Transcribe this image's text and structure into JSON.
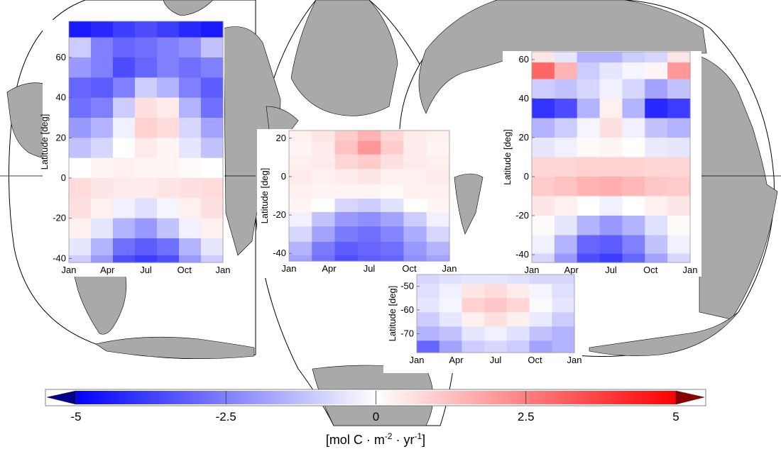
{
  "chart_data": [
    {
      "type": "heatmap",
      "name": "Atlantic",
      "x": [
        "Jan",
        "Apr",
        "Jul",
        "Oct",
        "Jan"
      ],
      "ylabel": "Latitude [deg]",
      "ylim": [
        -42,
        78
      ],
      "yticks": [
        60,
        40,
        20,
        0,
        -20,
        -40
      ],
      "ylabel_ticks": [
        "60",
        "40",
        "20",
        "0",
        "-20",
        "-40"
      ],
      "rows_lat": [
        75,
        65,
        55,
        45,
        35,
        25,
        15,
        5,
        -5,
        -15,
        -25,
        -35,
        -42
      ],
      "values": [
        [
          -4.5,
          -4.2,
          -3.8,
          -3.5,
          -3.8,
          -4.2,
          -4.5
        ],
        [
          -1.0,
          -2.5,
          -3.0,
          -2.8,
          -2.5,
          -2.2,
          -1.2
        ],
        [
          -2.0,
          -2.5,
          -3.5,
          -3.0,
          -2.5,
          -2.8,
          -2.5
        ],
        [
          -3.0,
          -3.2,
          -2.5,
          -1.0,
          -1.5,
          -2.5,
          -3.2
        ],
        [
          -2.8,
          -2.5,
          -1.0,
          0.6,
          0.4,
          -1.5,
          -2.8
        ],
        [
          -2.0,
          -1.5,
          -0.3,
          0.9,
          0.7,
          -0.8,
          -1.8
        ],
        [
          -1.2,
          -0.8,
          0.0,
          0.4,
          0.2,
          -0.5,
          -1.2
        ],
        [
          0.0,
          0.2,
          0.3,
          0.2,
          0.2,
          0.1,
          0.0
        ],
        [
          0.7,
          0.5,
          0.4,
          0.4,
          0.5,
          0.6,
          0.7
        ],
        [
          0.6,
          0.3,
          -0.3,
          -0.6,
          -0.2,
          0.3,
          0.6
        ],
        [
          0.3,
          -0.5,
          -1.5,
          -2.0,
          -1.2,
          -0.3,
          0.3
        ],
        [
          -0.5,
          -1.5,
          -2.8,
          -3.2,
          -2.8,
          -1.5,
          -0.5
        ],
        [
          -1.0,
          -2.0,
          -3.5,
          -3.8,
          -3.5,
          -2.0,
          -1.0
        ]
      ]
    },
    {
      "type": "heatmap",
      "name": "Indian",
      "x": [
        "Jan",
        "Apr",
        "Jul",
        "Oct",
        "Jan"
      ],
      "ylabel": "Latitude [deg]",
      "ylim": [
        -44,
        24
      ],
      "yticks": [
        20,
        0,
        -20,
        -40
      ],
      "ylabel_ticks": [
        "20",
        "0",
        "-20",
        "-40"
      ],
      "rows_lat": [
        22,
        15,
        8,
        0,
        -8,
        -15,
        -22,
        -30,
        -38,
        -44
      ],
      "values": [
        [
          0.3,
          0.5,
          1.0,
          1.5,
          0.8,
          0.4,
          0.3
        ],
        [
          0.2,
          0.4,
          1.2,
          2.0,
          1.0,
          0.4,
          0.2
        ],
        [
          0.3,
          0.4,
          0.8,
          1.0,
          0.6,
          0.4,
          0.3
        ],
        [
          0.4,
          0.3,
          0.4,
          0.5,
          0.3,
          0.3,
          0.4
        ],
        [
          0.3,
          0.2,
          0.2,
          0.2,
          0.1,
          0.3,
          0.3
        ],
        [
          0.2,
          0.0,
          -0.8,
          -1.0,
          -0.6,
          0.0,
          0.2
        ],
        [
          -0.3,
          -1.2,
          -2.0,
          -2.2,
          -1.8,
          -1.0,
          -0.3
        ],
        [
          -0.8,
          -1.8,
          -2.6,
          -2.8,
          -2.4,
          -1.6,
          -0.8
        ],
        [
          -1.5,
          -2.6,
          -3.2,
          -3.0,
          -2.8,
          -2.0,
          -1.5
        ],
        [
          -1.8,
          -2.8,
          -3.5,
          -3.2,
          -3.0,
          -2.2,
          -1.8
        ]
      ]
    },
    {
      "type": "heatmap",
      "name": "Pacific",
      "x": [
        "Jan",
        "Apr",
        "Jul",
        "Oct",
        "Jan"
      ],
      "ylabel": "Latitude [deg]",
      "ylim": [
        -44,
        64
      ],
      "yticks": [
        60,
        40,
        20,
        0,
        -20,
        -40
      ],
      "ylabel_ticks": [
        "60",
        "40",
        "20",
        "0",
        "-20",
        "-40"
      ],
      "rows_lat": [
        62,
        55,
        45,
        35,
        25,
        15,
        5,
        -5,
        -15,
        -25,
        -35,
        -44
      ],
      "values": [
        [
          0.5,
          -0.5,
          -1.5,
          -1.5,
          -1.0,
          -0.8,
          0.5
        ],
        [
          3.0,
          1.5,
          -1.0,
          -0.5,
          -0.2,
          0.2,
          2.0
        ],
        [
          -1.0,
          -1.2,
          -0.8,
          -0.3,
          -0.8,
          -1.8,
          -1.2
        ],
        [
          -4.0,
          -3.5,
          -1.5,
          0.3,
          -1.5,
          -4.2,
          -3.8
        ],
        [
          -1.5,
          -1.0,
          -0.2,
          0.6,
          -0.3,
          -1.2,
          -1.5
        ],
        [
          -0.5,
          -0.3,
          0.1,
          0.2,
          0.0,
          -0.4,
          -0.5
        ],
        [
          0.8,
          0.8,
          0.9,
          0.9,
          0.9,
          0.8,
          0.8
        ],
        [
          1.0,
          1.2,
          1.5,
          1.6,
          1.4,
          1.1,
          1.0
        ],
        [
          0.5,
          0.3,
          0.0,
          -0.3,
          0.0,
          0.3,
          0.5
        ],
        [
          0.1,
          -0.5,
          -1.5,
          -2.0,
          -1.5,
          -0.6,
          0.1
        ],
        [
          -0.3,
          -1.5,
          -3.0,
          -3.2,
          -2.5,
          -1.2,
          -0.3
        ],
        [
          -0.8,
          -2.0,
          -3.5,
          -3.8,
          -3.0,
          -1.8,
          -0.8
        ]
      ]
    },
    {
      "type": "heatmap",
      "name": "Southern",
      "x": [
        "Jan",
        "Apr",
        "Jul",
        "Oct",
        "Jan"
      ],
      "ylabel": "Latitude [deg]",
      "ylim": [
        -78,
        -45
      ],
      "yticks": [
        -50,
        -60,
        -70
      ],
      "ylabel_ticks": [
        "-50",
        "-60",
        "-70"
      ],
      "rows_lat": [
        -46,
        -52,
        -58,
        -64,
        -70,
        -76
      ],
      "values": [
        [
          -0.8,
          -0.6,
          -0.5,
          -0.5,
          -0.6,
          -0.8,
          -0.8
        ],
        [
          -0.6,
          -0.3,
          0.5,
          0.7,
          0.4,
          -0.2,
          -0.6
        ],
        [
          -0.5,
          -0.2,
          0.9,
          1.1,
          0.8,
          -0.1,
          -0.5
        ],
        [
          -1.0,
          -0.5,
          0.3,
          0.6,
          0.3,
          -0.4,
          -1.0
        ],
        [
          -1.5,
          -1.2,
          -0.5,
          -0.3,
          -0.6,
          -1.2,
          -1.5
        ],
        [
          -3.0,
          -1.8,
          -1.0,
          -0.8,
          -1.0,
          -1.8,
          -1.5
        ]
      ]
    }
  ],
  "colorbar": {
    "ticks": [
      "-5",
      "-2.5",
      "0",
      "2.5",
      "5"
    ],
    "range": [
      -5,
      5
    ],
    "unit_prefix": "[mol C · m",
    "unit_exp1": "-2",
    "unit_mid": " · yr",
    "unit_exp2": "-1",
    "unit_suffix": "]"
  },
  "colors": {
    "negative": "#0000ff",
    "zero": "#ffffff",
    "positive": "#ff0000",
    "land": "#a9a9a9"
  }
}
